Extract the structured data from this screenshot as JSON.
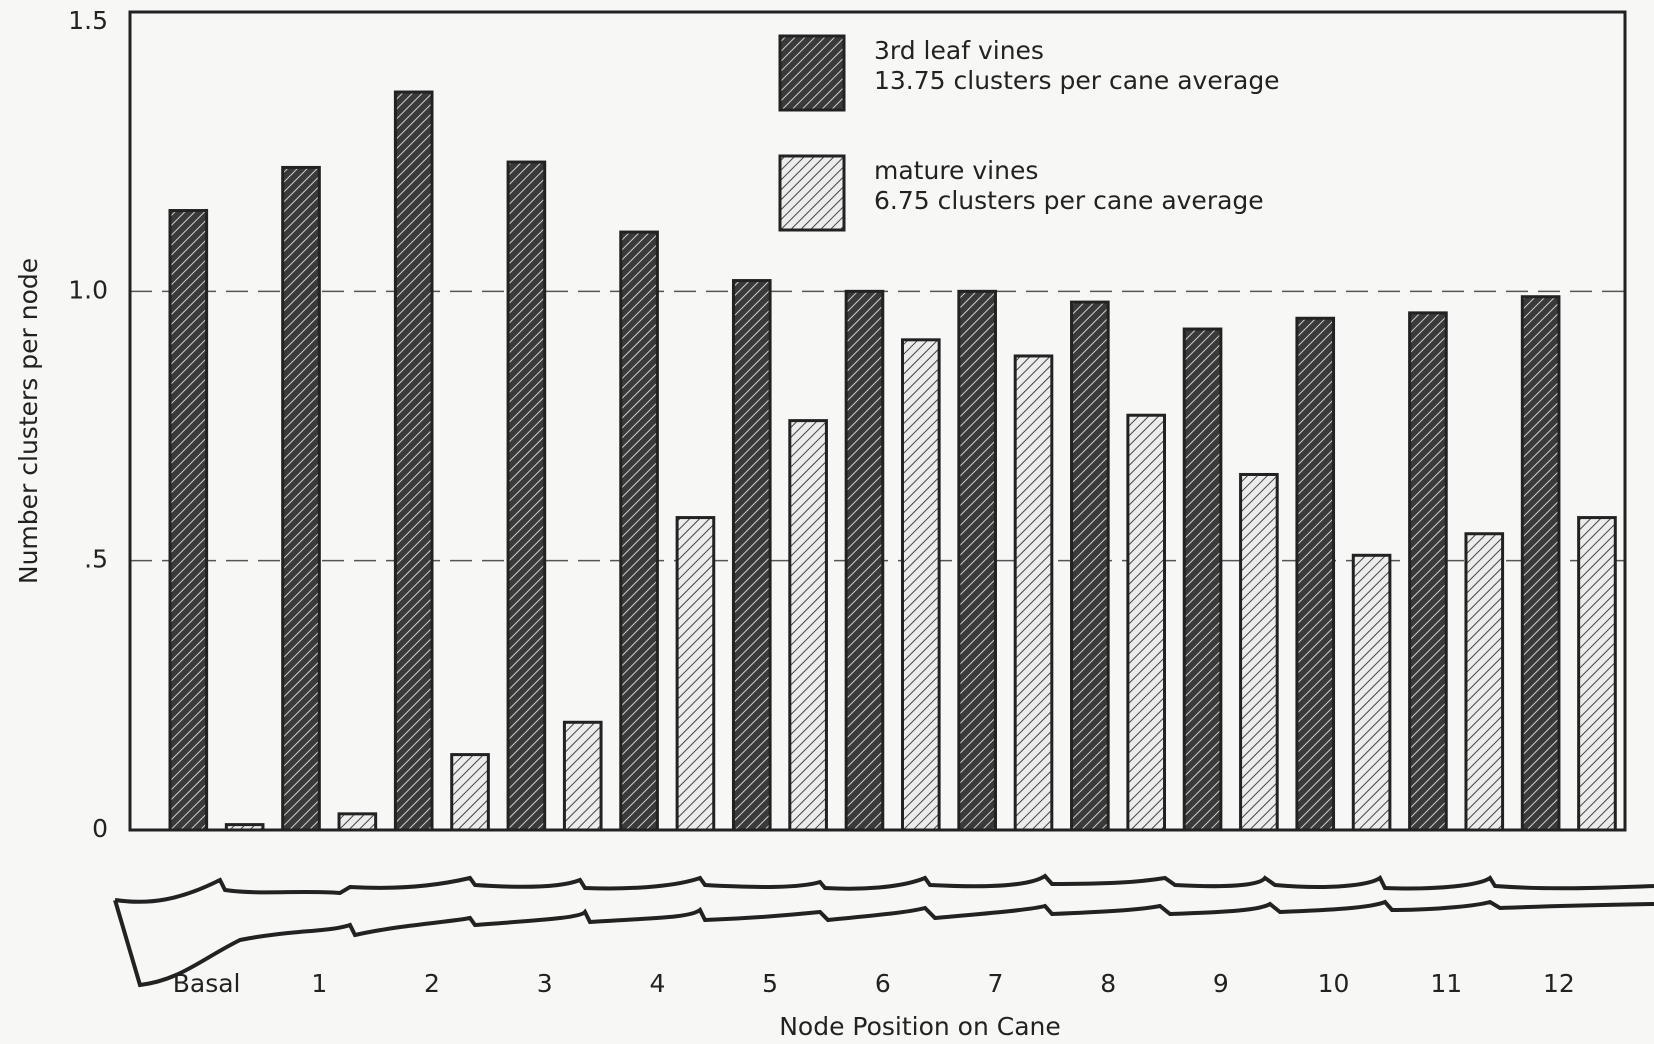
{
  "chart_data": {
    "type": "bar",
    "x_label": "Node Position on Cane",
    "y_label": "Number clusters per node",
    "categories": [
      "Basal",
      "1",
      "2",
      "3",
      "4",
      "5",
      "6",
      "7",
      "8",
      "9",
      "10",
      "11",
      "12"
    ],
    "series": [
      {
        "name": "3rd leaf vines",
        "note": "13.75 clusters per cane average",
        "color": "#3a3a3a",
        "values": [
          1.15,
          1.23,
          1.37,
          1.24,
          1.11,
          1.02,
          1.0,
          1.0,
          0.98,
          0.93,
          0.95,
          0.96,
          0.99
        ]
      },
      {
        "name": "mature vines",
        "note": "6.75 clusters per cane average",
        "color": "#ececec",
        "values": [
          0.01,
          0.03,
          0.14,
          0.2,
          0.58,
          0.76,
          0.91,
          0.88,
          0.77,
          0.66,
          0.51,
          0.55,
          0.58
        ]
      }
    ],
    "ylim": [
      0,
      1.5
    ],
    "yticks": [
      0,
      {
        "value": 0.5,
        "label": ".5"
      },
      {
        "value": 1,
        "label": "1.0"
      },
      1.5
    ],
    "grid": true,
    "legend": "top-center"
  }
}
